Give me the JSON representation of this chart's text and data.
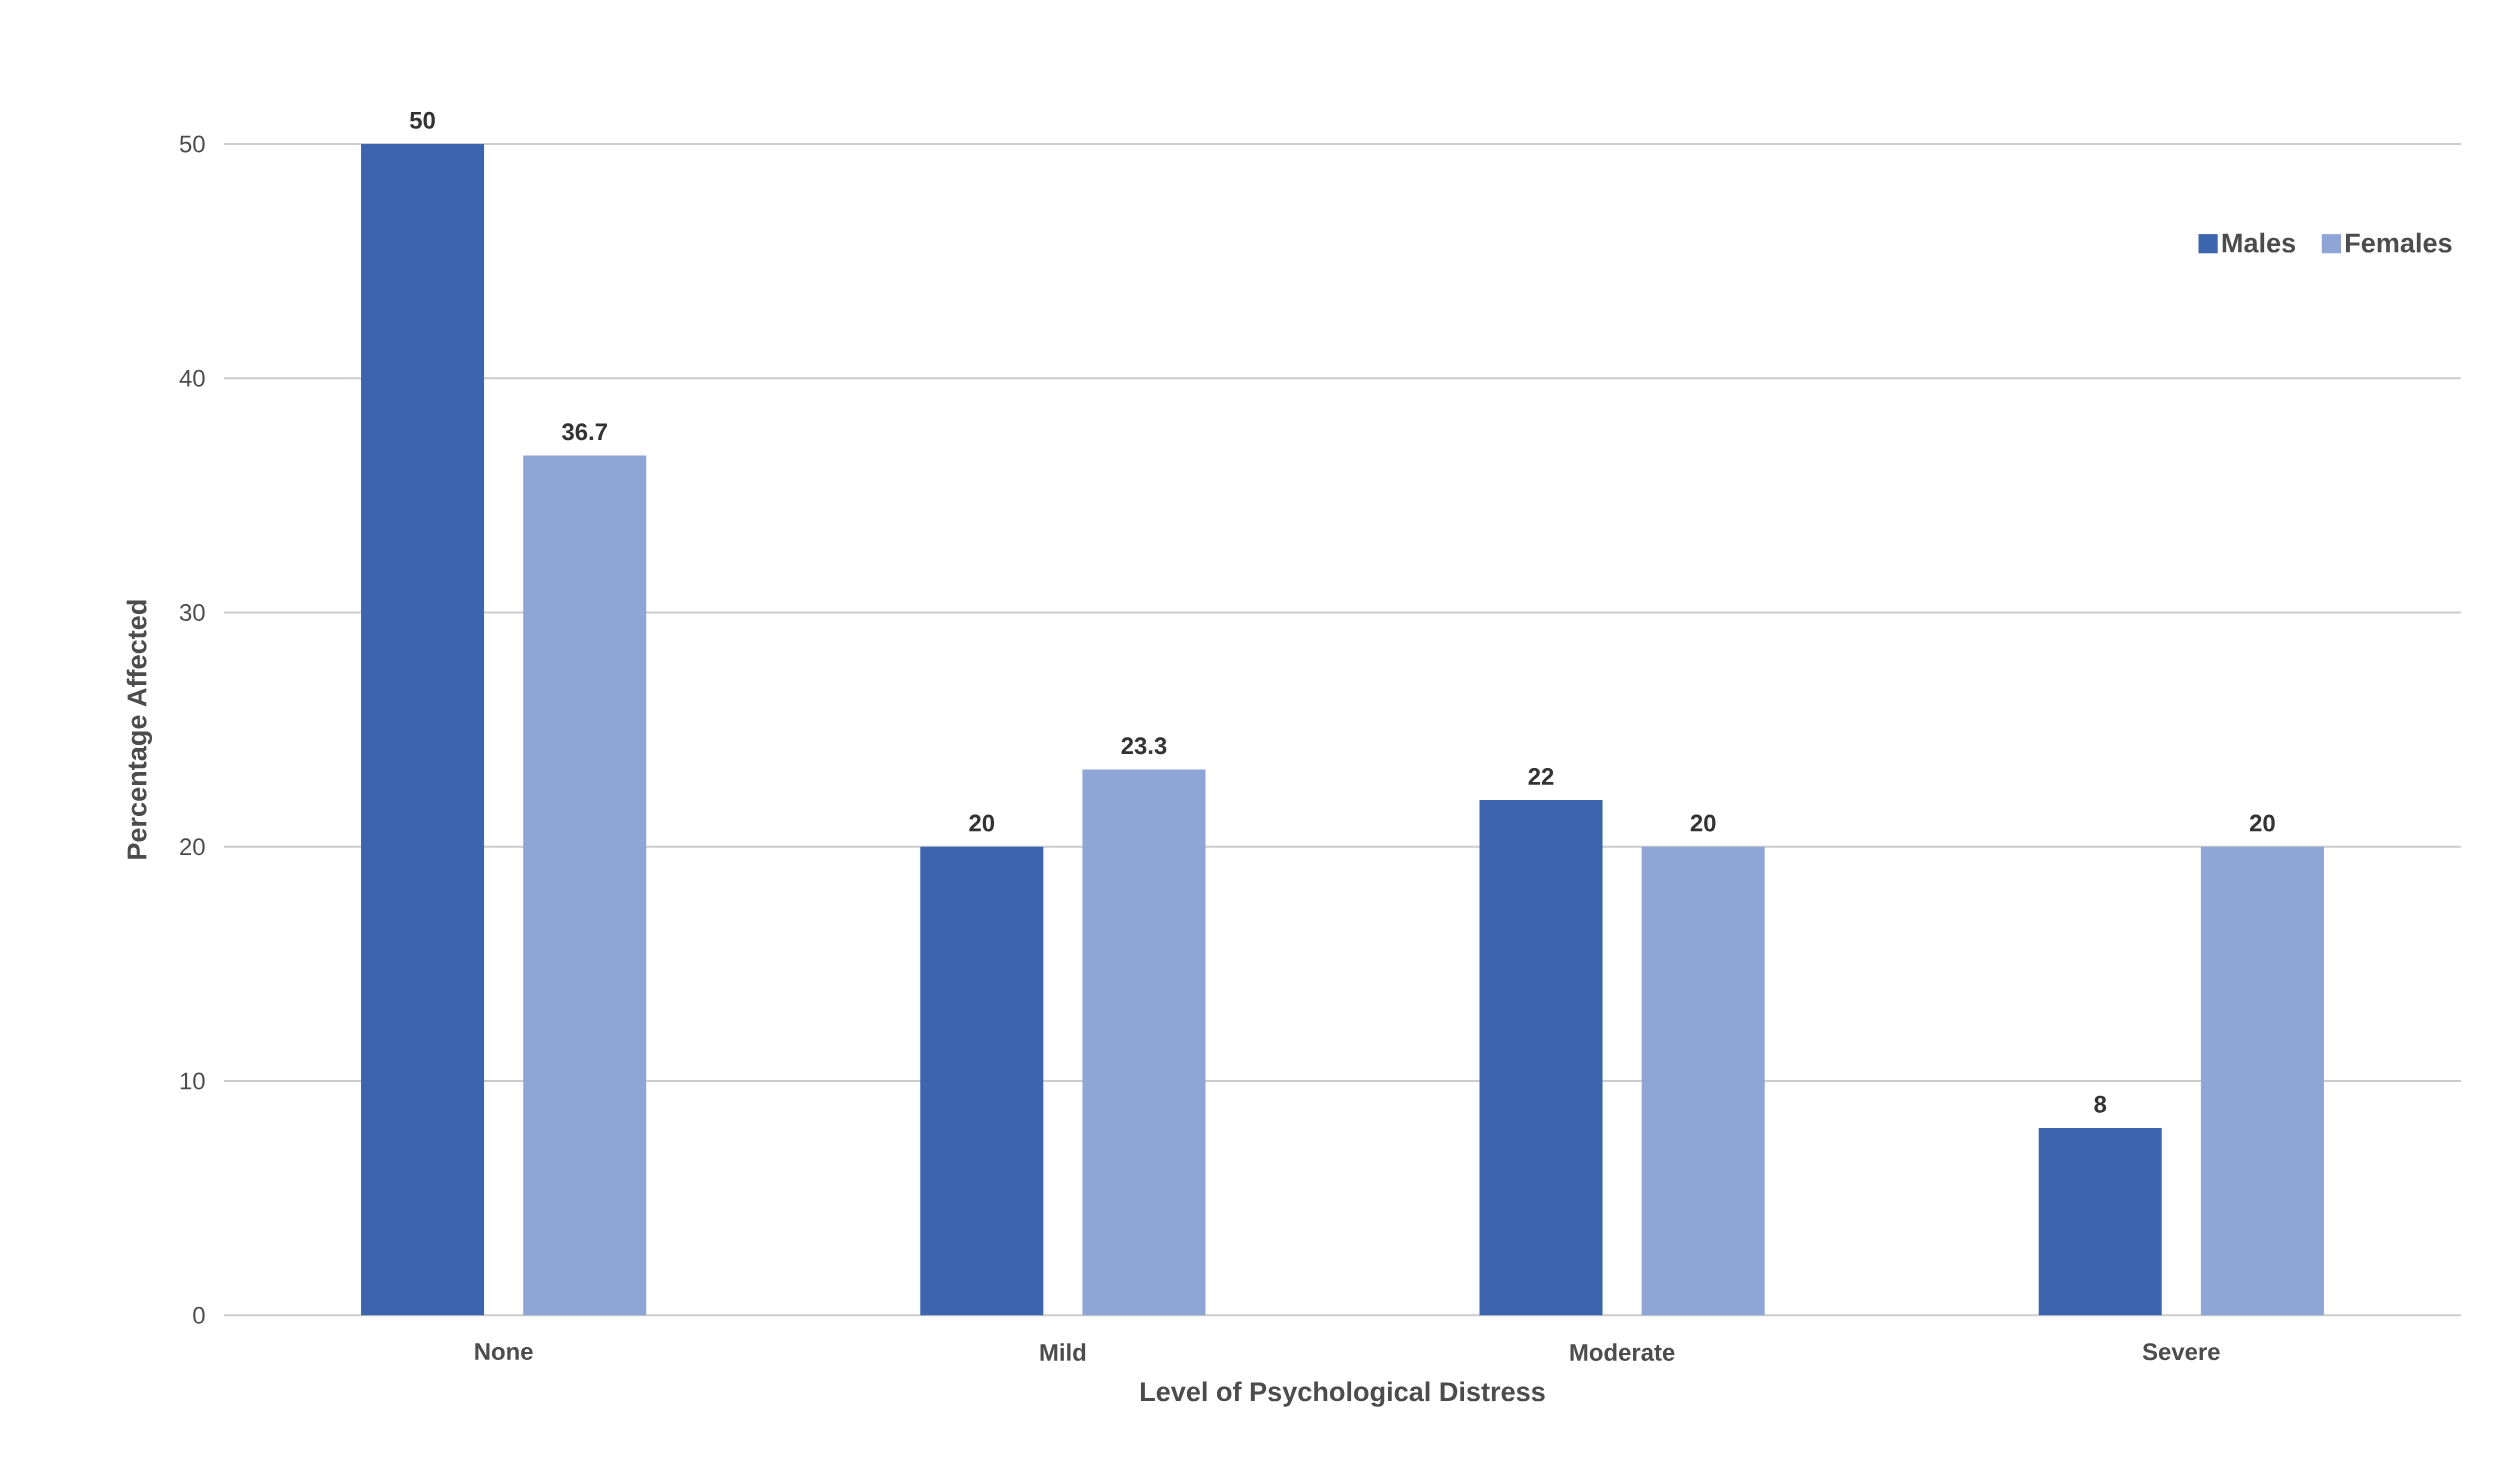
{
  "chart_data": {
    "type": "bar",
    "xlabel": "Level of Psychological Distress",
    "ylabel": "Percentage Affected",
    "categories": [
      "None",
      "Mild",
      "Moderate",
      "Severe"
    ],
    "series": [
      {
        "name": "Males",
        "color": "#3c65ad",
        "values": [
          50,
          20,
          22,
          8
        ]
      },
      {
        "name": "Females",
        "color": "#8fa5d6",
        "values": [
          36.7,
          23.3,
          20,
          20
        ]
      }
    ],
    "ylim": [
      0,
      50
    ],
    "yticks": [
      0,
      10,
      20,
      30,
      40,
      50
    ],
    "grid": "y",
    "legend": "top right",
    "data_labels": true
  }
}
